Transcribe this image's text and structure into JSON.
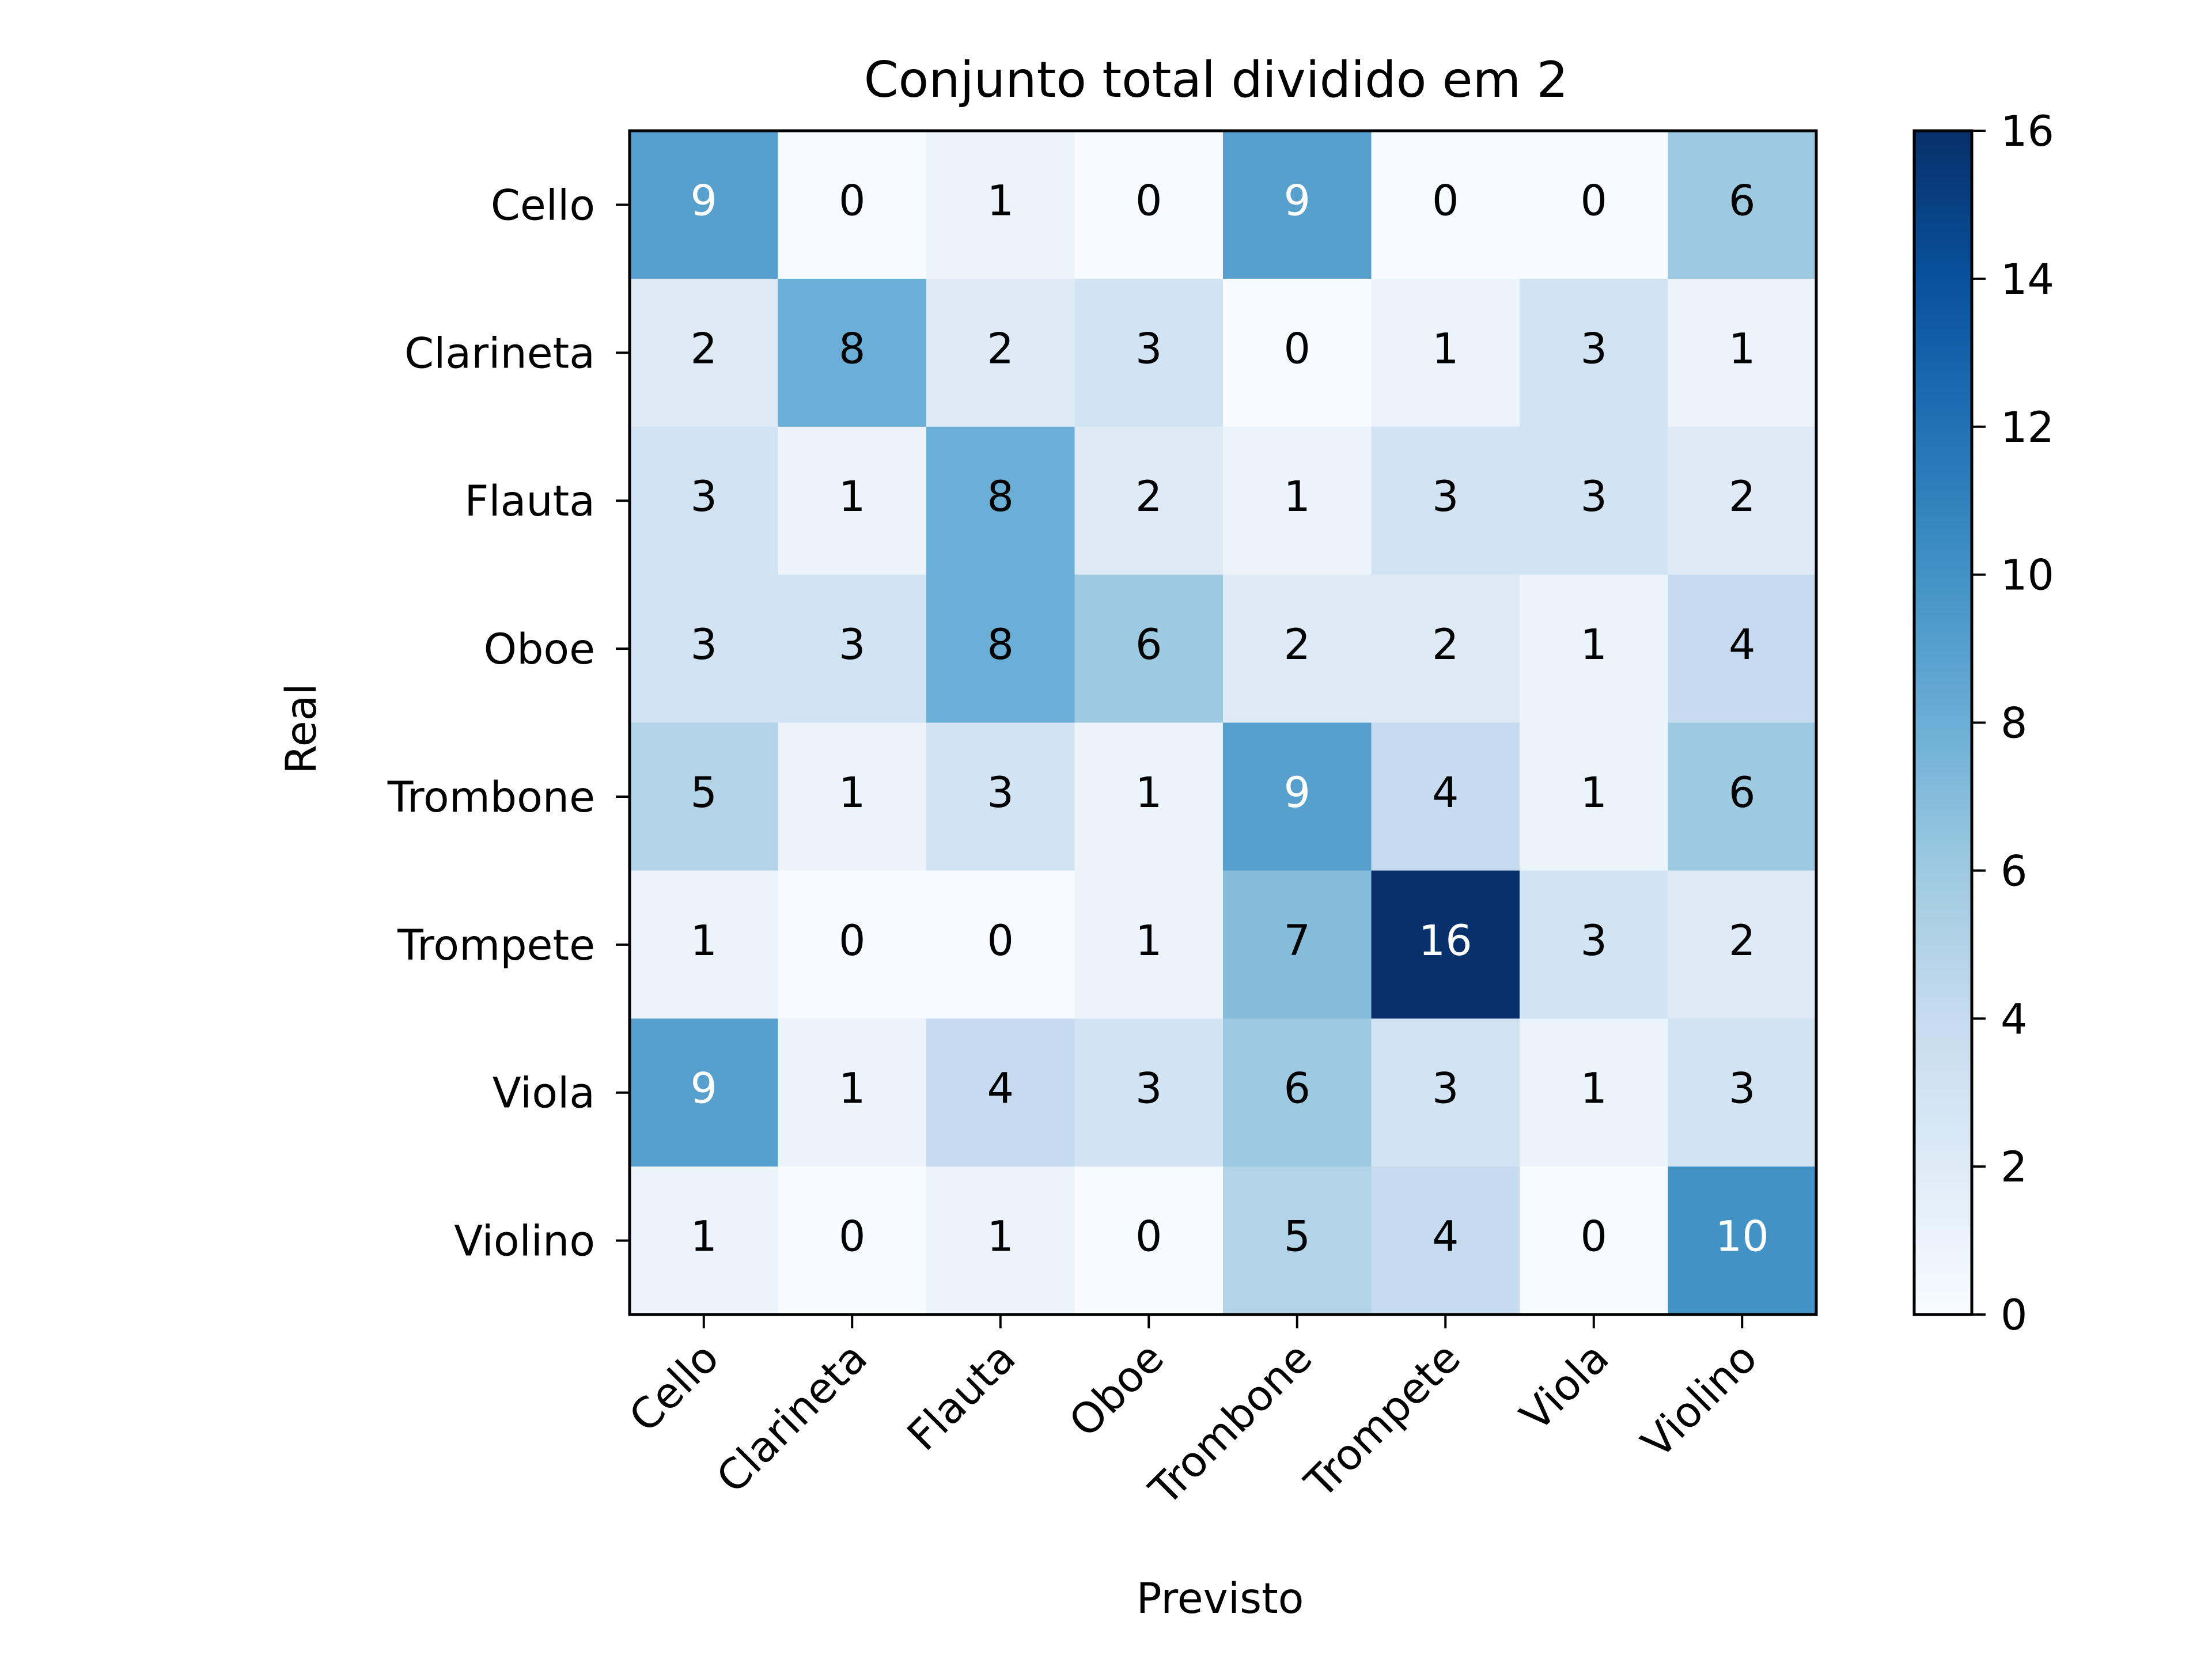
{
  "chart_data": {
    "type": "heatmap",
    "title": "Conjunto total dividido em 2",
    "xlabel": "Previsto",
    "ylabel": "Real",
    "x_categories": [
      "Cello",
      "Clarineta",
      "Flauta",
      "Oboe",
      "Trombone",
      "Trompete",
      "Viola",
      "Violino"
    ],
    "y_categories": [
      "Cello",
      "Clarineta",
      "Flauta",
      "Oboe",
      "Trombone",
      "Trompete",
      "Viola",
      "Violino"
    ],
    "values": [
      [
        9,
        0,
        1,
        0,
        9,
        0,
        0,
        6
      ],
      [
        2,
        8,
        2,
        3,
        0,
        1,
        3,
        1
      ],
      [
        3,
        1,
        8,
        2,
        1,
        3,
        3,
        2
      ],
      [
        3,
        3,
        8,
        6,
        2,
        2,
        1,
        4
      ],
      [
        5,
        1,
        3,
        1,
        9,
        4,
        1,
        6
      ],
      [
        1,
        0,
        0,
        1,
        7,
        16,
        3,
        2
      ],
      [
        9,
        1,
        4,
        3,
        6,
        3,
        1,
        3
      ],
      [
        1,
        0,
        1,
        0,
        5,
        4,
        0,
        10
      ]
    ],
    "colorbar": {
      "min": 0,
      "max": 16,
      "ticks": [
        "0",
        "2",
        "4",
        "6",
        "8",
        "10",
        "12",
        "14",
        "16"
      ],
      "colormap": "Blues"
    },
    "grid": false
  }
}
